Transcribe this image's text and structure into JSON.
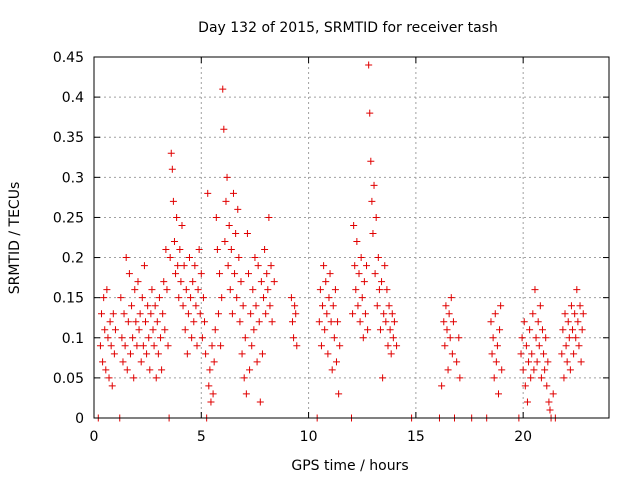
{
  "chart_data": {
    "type": "scatter",
    "title": "Day 132 of 2015, SRMTID for receiver tash",
    "xlabel": "GPS time / hours",
    "ylabel": "SRMTID / TECUs",
    "xlim": [
      0,
      24
    ],
    "ylim": [
      0,
      0.45
    ],
    "x_ticks": [
      0,
      5,
      10,
      15,
      20
    ],
    "x_tick_labels": [
      "0",
      "5",
      "10",
      "15",
      "20"
    ],
    "y_ticks": [
      0,
      0.05,
      0.1,
      0.15,
      0.2,
      0.25,
      0.3,
      0.35,
      0.4,
      0.45
    ],
    "y_tick_labels": [
      "0",
      "0.05",
      "0.1",
      "0.15",
      "0.2",
      "0.25",
      "0.3",
      "0.35",
      "0.4",
      "0.45"
    ],
    "grid": true,
    "marker": "plus",
    "color": "#e00000",
    "series": [
      {
        "name": "SRMTID",
        "points": [
          [
            0.2,
            0.0
          ],
          [
            0.3,
            0.09
          ],
          [
            0.35,
            0.13
          ],
          [
            0.4,
            0.07
          ],
          [
            0.45,
            0.15
          ],
          [
            0.5,
            0.11
          ],
          [
            0.55,
            0.06
          ],
          [
            0.6,
            0.16
          ],
          [
            0.65,
            0.1
          ],
          [
            0.7,
            0.05
          ],
          [
            0.75,
            0.12
          ],
          [
            0.8,
            0.09
          ],
          [
            0.85,
            0.04
          ],
          [
            0.9,
            0.13
          ],
          [
            0.95,
            0.08
          ],
          [
            1.0,
            0.11
          ],
          [
            1.2,
            0.0
          ],
          [
            1.25,
            0.15
          ],
          [
            1.3,
            0.1
          ],
          [
            1.35,
            0.07
          ],
          [
            1.4,
            0.13
          ],
          [
            1.45,
            0.09
          ],
          [
            1.5,
            0.2
          ],
          [
            1.55,
            0.06
          ],
          [
            1.6,
            0.12
          ],
          [
            1.65,
            0.18
          ],
          [
            1.7,
            0.08
          ],
          [
            1.75,
            0.14
          ],
          [
            1.8,
            0.1
          ],
          [
            1.85,
            0.05
          ],
          [
            1.9,
            0.16
          ],
          [
            1.95,
            0.12
          ],
          [
            2.0,
            0.09
          ],
          [
            2.05,
            0.17
          ],
          [
            2.1,
            0.11
          ],
          [
            2.15,
            0.13
          ],
          [
            2.2,
            0.07
          ],
          [
            2.25,
            0.15
          ],
          [
            2.3,
            0.09
          ],
          [
            2.35,
            0.19
          ],
          [
            2.4,
            0.12
          ],
          [
            2.45,
            0.08
          ],
          [
            2.5,
            0.14
          ],
          [
            2.55,
            0.1
          ],
          [
            2.6,
            0.06
          ],
          [
            2.65,
            0.13
          ],
          [
            2.7,
            0.16
          ],
          [
            2.75,
            0.11
          ],
          [
            2.8,
            0.09
          ],
          [
            2.85,
            0.14
          ],
          [
            2.9,
            0.05
          ],
          [
            2.95,
            0.12
          ],
          [
            3.0,
            0.08
          ],
          [
            3.05,
            0.15
          ],
          [
            3.1,
            0.1
          ],
          [
            3.15,
            0.06
          ],
          [
            3.2,
            0.13
          ],
          [
            3.25,
            0.17
          ],
          [
            3.3,
            0.11
          ],
          [
            3.35,
            0.21
          ],
          [
            3.4,
            0.16
          ],
          [
            3.45,
            0.09
          ],
          [
            3.5,
            0.0
          ],
          [
            3.55,
            0.2
          ],
          [
            3.6,
            0.33
          ],
          [
            3.65,
            0.31
          ],
          [
            3.7,
            0.27
          ],
          [
            3.75,
            0.22
          ],
          [
            3.8,
            0.18
          ],
          [
            3.85,
            0.25
          ],
          [
            3.9,
            0.19
          ],
          [
            3.95,
            0.15
          ],
          [
            4.0,
            0.21
          ],
          [
            4.05,
            0.17
          ],
          [
            4.1,
            0.24
          ],
          [
            4.15,
            0.14
          ],
          [
            4.2,
            0.19
          ],
          [
            4.25,
            0.11
          ],
          [
            4.3,
            0.16
          ],
          [
            4.35,
            0.08
          ],
          [
            4.4,
            0.13
          ],
          [
            4.45,
            0.2
          ],
          [
            4.5,
            0.15
          ],
          [
            4.55,
            0.1
          ],
          [
            4.6,
            0.17
          ],
          [
            4.65,
            0.12
          ],
          [
            4.7,
            0.19
          ],
          [
            4.75,
            0.14
          ],
          [
            4.8,
            0.09
          ],
          [
            4.85,
            0.16
          ],
          [
            4.9,
            0.21
          ],
          [
            4.95,
            0.13
          ],
          [
            5.0,
            0.18
          ],
          [
            5.05,
            0.1
          ],
          [
            5.1,
            0.15
          ],
          [
            5.15,
            0.12
          ],
          [
            5.2,
            0.08
          ],
          [
            5.25,
            0.0
          ],
          [
            5.3,
            0.28
          ],
          [
            5.35,
            0.04
          ],
          [
            5.4,
            0.06
          ],
          [
            5.45,
            0.02
          ],
          [
            5.5,
            0.09
          ],
          [
            5.55,
            0.03
          ],
          [
            5.6,
            0.07
          ],
          [
            5.65,
            0.11
          ],
          [
            5.7,
            0.25
          ],
          [
            5.75,
            0.21
          ],
          [
            5.8,
            0.13
          ],
          [
            5.85,
            0.18
          ],
          [
            5.9,
            0.09
          ],
          [
            5.95,
            0.15
          ],
          [
            6.0,
            0.41
          ],
          [
            6.05,
            0.36
          ],
          [
            6.1,
            0.22
          ],
          [
            6.15,
            0.27
          ],
          [
            6.2,
            0.3
          ],
          [
            6.25,
            0.19
          ],
          [
            6.3,
            0.24
          ],
          [
            6.35,
            0.16
          ],
          [
            6.4,
            0.21
          ],
          [
            6.45,
            0.13
          ],
          [
            6.5,
            0.28
          ],
          [
            6.55,
            0.18
          ],
          [
            6.6,
            0.23
          ],
          [
            6.65,
            0.15
          ],
          [
            6.7,
            0.26
          ],
          [
            6.75,
            0.2
          ],
          [
            6.8,
            0.12
          ],
          [
            6.85,
            0.17
          ],
          [
            6.9,
            0.08
          ],
          [
            6.95,
            0.14
          ],
          [
            7.0,
            0.05
          ],
          [
            7.05,
            0.1
          ],
          [
            7.1,
            0.03
          ],
          [
            7.15,
            0.23
          ],
          [
            7.2,
            0.18
          ],
          [
            7.25,
            0.06
          ],
          [
            7.3,
            0.13
          ],
          [
            7.35,
            0.09
          ],
          [
            7.4,
            0.16
          ],
          [
            7.45,
            0.11
          ],
          [
            7.5,
            0.2
          ],
          [
            7.55,
            0.14
          ],
          [
            7.6,
            0.07
          ],
          [
            7.65,
            0.19
          ],
          [
            7.7,
            0.12
          ],
          [
            7.75,
            0.02
          ],
          [
            7.8,
            0.17
          ],
          [
            7.85,
            0.08
          ],
          [
            7.9,
            0.15
          ],
          [
            7.95,
            0.21
          ],
          [
            8.0,
            0.13
          ],
          [
            8.05,
            0.18
          ],
          [
            8.1,
            0.16
          ],
          [
            8.15,
            0.25
          ],
          [
            8.2,
            0.14
          ],
          [
            8.25,
            0.19
          ],
          [
            8.3,
            0.12
          ],
          [
            8.4,
            0.17
          ],
          [
            9.2,
            0.15
          ],
          [
            9.25,
            0.12
          ],
          [
            9.3,
            0.1
          ],
          [
            9.35,
            0.14
          ],
          [
            9.4,
            0.13
          ],
          [
            9.45,
            0.09
          ],
          [
            10.4,
            0.0
          ],
          [
            10.5,
            0.12
          ],
          [
            10.55,
            0.16
          ],
          [
            10.6,
            0.09
          ],
          [
            10.65,
            0.14
          ],
          [
            10.7,
            0.19
          ],
          [
            10.75,
            0.11
          ],
          [
            10.8,
            0.17
          ],
          [
            10.85,
            0.13
          ],
          [
            10.9,
            0.08
          ],
          [
            10.95,
            0.15
          ],
          [
            11.0,
            0.18
          ],
          [
            11.05,
            0.12
          ],
          [
            11.1,
            0.06
          ],
          [
            11.15,
            0.14
          ],
          [
            11.2,
            0.1
          ],
          [
            11.25,
            0.16
          ],
          [
            11.3,
            0.07
          ],
          [
            11.35,
            0.12
          ],
          [
            11.4,
            0.03
          ],
          [
            11.45,
            0.09
          ],
          [
            12.0,
            0.0
          ],
          [
            12.05,
            0.13
          ],
          [
            12.1,
            0.24
          ],
          [
            12.15,
            0.19
          ],
          [
            12.2,
            0.16
          ],
          [
            12.25,
            0.22
          ],
          [
            12.3,
            0.14
          ],
          [
            12.35,
            0.18
          ],
          [
            12.4,
            0.12
          ],
          [
            12.45,
            0.2
          ],
          [
            12.5,
            0.15
          ],
          [
            12.55,
            0.1
          ],
          [
            12.6,
            0.17
          ],
          [
            12.65,
            0.13
          ],
          [
            12.7,
            0.19
          ],
          [
            12.75,
            0.11
          ],
          [
            12.8,
            0.44
          ],
          [
            12.85,
            0.38
          ],
          [
            12.9,
            0.32
          ],
          [
            12.95,
            0.27
          ],
          [
            13.0,
            0.23
          ],
          [
            13.05,
            0.29
          ],
          [
            13.1,
            0.18
          ],
          [
            13.15,
            0.25
          ],
          [
            13.2,
            0.14
          ],
          [
            13.25,
            0.2
          ],
          [
            13.3,
            0.16
          ],
          [
            13.35,
            0.11
          ],
          [
            13.4,
            0.17
          ],
          [
            13.45,
            0.05
          ],
          [
            13.5,
            0.13
          ],
          [
            13.55,
            0.19
          ],
          [
            13.6,
            0.12
          ],
          [
            13.65,
            0.16
          ],
          [
            13.7,
            0.09
          ],
          [
            13.75,
            0.14
          ],
          [
            13.8,
            0.11
          ],
          [
            13.85,
            0.08
          ],
          [
            13.9,
            0.13
          ],
          [
            13.95,
            0.1
          ],
          [
            14.0,
            0.12
          ],
          [
            14.1,
            0.09
          ],
          [
            14.8,
            0.0
          ],
          [
            16.1,
            0.0
          ],
          [
            16.2,
            0.04
          ],
          [
            16.3,
            0.12
          ],
          [
            16.35,
            0.09
          ],
          [
            16.4,
            0.14
          ],
          [
            16.45,
            0.11
          ],
          [
            16.5,
            0.06
          ],
          [
            16.55,
            0.13
          ],
          [
            16.6,
            0.1
          ],
          [
            16.65,
            0.15
          ],
          [
            16.7,
            0.08
          ],
          [
            16.75,
            0.12
          ],
          [
            16.8,
            0.0
          ],
          [
            16.9,
            0.07
          ],
          [
            17.0,
            0.1
          ],
          [
            17.05,
            0.05
          ],
          [
            17.6,
            0.0
          ],
          [
            18.3,
            0.0
          ],
          [
            18.5,
            0.12
          ],
          [
            18.55,
            0.08
          ],
          [
            18.6,
            0.1
          ],
          [
            18.65,
            0.05
          ],
          [
            18.7,
            0.13
          ],
          [
            18.75,
            0.07
          ],
          [
            18.8,
            0.09
          ],
          [
            18.85,
            0.03
          ],
          [
            18.9,
            0.11
          ],
          [
            18.95,
            0.14
          ],
          [
            19.0,
            0.06
          ],
          [
            19.8,
            0.0
          ],
          [
            19.9,
            0.08
          ],
          [
            19.95,
            0.1
          ],
          [
            20.0,
            0.06
          ],
          [
            20.05,
            0.12
          ],
          [
            20.1,
            0.04
          ],
          [
            20.15,
            0.09
          ],
          [
            20.2,
            0.02
          ],
          [
            20.25,
            0.07
          ],
          [
            20.3,
            0.11
          ],
          [
            20.35,
            0.05
          ],
          [
            20.4,
            0.08
          ],
          [
            20.45,
            0.13
          ],
          [
            20.5,
            0.06
          ],
          [
            20.55,
            0.16
          ],
          [
            20.6,
            0.1
          ],
          [
            20.65,
            0.07
          ],
          [
            20.7,
            0.12
          ],
          [
            20.75,
            0.09
          ],
          [
            20.8,
            0.14
          ],
          [
            20.85,
            0.05
          ],
          [
            20.9,
            0.11
          ],
          [
            20.95,
            0.08
          ],
          [
            21.0,
            0.06
          ],
          [
            21.05,
            0.1
          ],
          [
            21.1,
            0.04
          ],
          [
            21.15,
            0.07
          ],
          [
            21.2,
            0.02
          ],
          [
            21.25,
            0.01
          ],
          [
            21.3,
            0.0
          ],
          [
            21.4,
            0.03
          ],
          [
            21.5,
            0.0
          ],
          [
            21.8,
            0.08
          ],
          [
            21.85,
            0.11
          ],
          [
            21.9,
            0.05
          ],
          [
            21.95,
            0.13
          ],
          [
            22.0,
            0.09
          ],
          [
            22.05,
            0.07
          ],
          [
            22.1,
            0.12
          ],
          [
            22.15,
            0.1
          ],
          [
            22.2,
            0.06
          ],
          [
            22.25,
            0.14
          ],
          [
            22.3,
            0.11
          ],
          [
            22.35,
            0.08
          ],
          [
            22.4,
            0.13
          ],
          [
            22.45,
            0.1
          ],
          [
            22.5,
            0.16
          ],
          [
            22.55,
            0.12
          ],
          [
            22.6,
            0.09
          ],
          [
            22.65,
            0.14
          ],
          [
            22.7,
            0.07
          ],
          [
            22.75,
            0.11
          ],
          [
            22.8,
            0.13
          ]
        ]
      }
    ]
  }
}
